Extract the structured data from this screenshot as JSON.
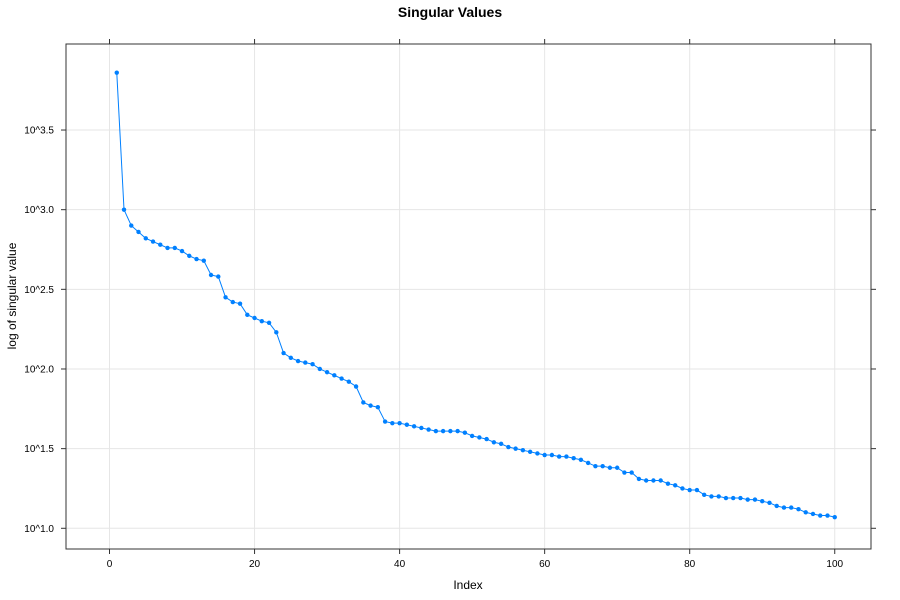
{
  "chart_data": {
    "type": "line",
    "title": "Singular Values",
    "xlabel": "Index",
    "ylabel": "log of singular value",
    "xlim": [
      -6,
      105
    ],
    "ylim_log10": [
      0.87,
      4.04
    ],
    "y_scale": "log10",
    "grid": true,
    "x_ticks": [
      0,
      20,
      40,
      60,
      80,
      100
    ],
    "x_tick_labels": [
      "0",
      "20",
      "40",
      "60",
      "80",
      "100"
    ],
    "y_ticks_log10": [
      1.0,
      1.5,
      2.0,
      2.5,
      3.0,
      3.5
    ],
    "y_tick_labels": [
      "10^1.0",
      "10^1.5",
      "10^2.0",
      "10^2.5",
      "10^3.0",
      "10^3.5"
    ],
    "series": [
      {
        "color": "#0080ff",
        "x": [
          1,
          2,
          3,
          4,
          5,
          6,
          7,
          8,
          9,
          10,
          11,
          12,
          13,
          14,
          15,
          16,
          17,
          18,
          19,
          20,
          21,
          22,
          23,
          24,
          25,
          26,
          27,
          28,
          29,
          30,
          31,
          32,
          33,
          34,
          35,
          36,
          37,
          38,
          39,
          40,
          41,
          42,
          43,
          44,
          45,
          46,
          47,
          48,
          49,
          50,
          51,
          52,
          53,
          54,
          55,
          56,
          57,
          58,
          59,
          60,
          61,
          62,
          63,
          64,
          65,
          66,
          67,
          68,
          69,
          70,
          71,
          72,
          73,
          74,
          75,
          76,
          77,
          78,
          79,
          80,
          81,
          82,
          83,
          84,
          85,
          86,
          87,
          88,
          89,
          90,
          91,
          92,
          93,
          94,
          95,
          96,
          97,
          98,
          99,
          100
        ],
        "log10_values": [
          3.86,
          3.0,
          2.9,
          2.86,
          2.82,
          2.8,
          2.78,
          2.76,
          2.76,
          2.74,
          2.71,
          2.69,
          2.68,
          2.59,
          2.58,
          2.45,
          2.42,
          2.41,
          2.34,
          2.32,
          2.3,
          2.29,
          2.23,
          2.1,
          2.07,
          2.05,
          2.04,
          2.03,
          2.0,
          1.98,
          1.96,
          1.94,
          1.92,
          1.89,
          1.79,
          1.77,
          1.76,
          1.67,
          1.66,
          1.66,
          1.65,
          1.64,
          1.63,
          1.62,
          1.61,
          1.61,
          1.61,
          1.61,
          1.6,
          1.58,
          1.57,
          1.56,
          1.54,
          1.53,
          1.51,
          1.5,
          1.49,
          1.48,
          1.47,
          1.46,
          1.46,
          1.45,
          1.45,
          1.44,
          1.43,
          1.41,
          1.39,
          1.39,
          1.38,
          1.38,
          1.35,
          1.35,
          1.31,
          1.3,
          1.3,
          1.3,
          1.28,
          1.27,
          1.25,
          1.24,
          1.24,
          1.21,
          1.2,
          1.2,
          1.19,
          1.19,
          1.19,
          1.18,
          1.18,
          1.17,
          1.16,
          1.14,
          1.13,
          1.13,
          1.12,
          1.1,
          1.09,
          1.08,
          1.08,
          1.07
        ]
      }
    ]
  }
}
